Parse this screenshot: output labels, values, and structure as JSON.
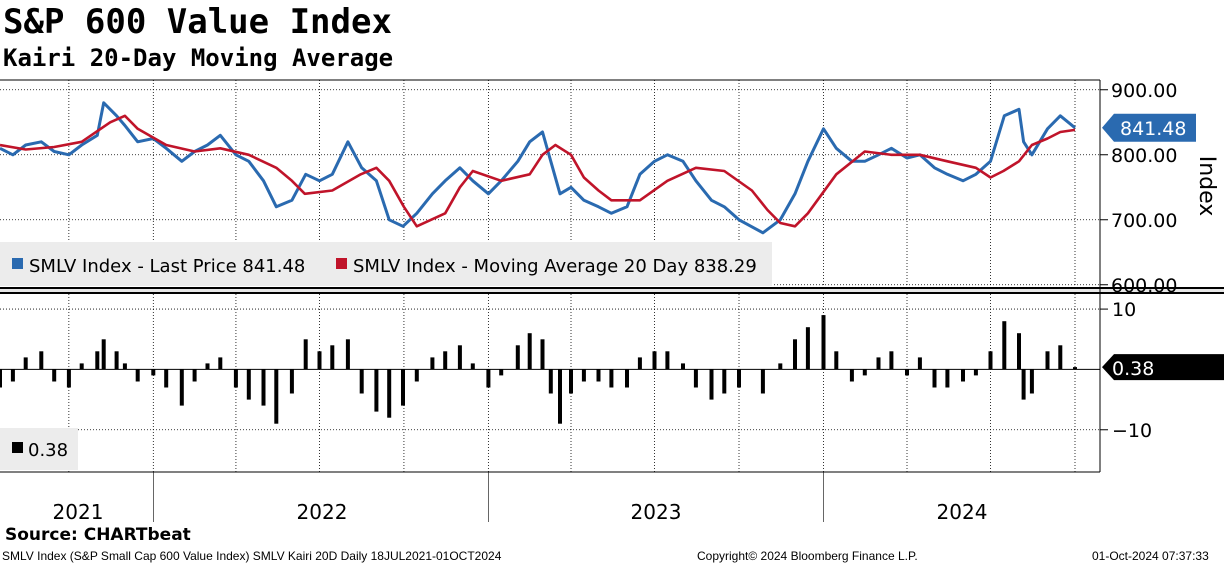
{
  "header": {
    "title": "S&P 600 Value Index",
    "subtitle": "Kairi 20-Day Moving Average"
  },
  "source": "Source: CHARTbeat",
  "footer": {
    "left": "SMLV Index (S&P Small Cap 600 Value Index) SMLV Kairi 20D  Daily 18JUL2021-01OCT2024",
    "center": "Copyright© 2024 Bloomberg Finance L.P.",
    "right": "01-Oct-2024 07:37:33"
  },
  "colors": {
    "price": "#2a6ab0",
    "ma": "#c0142a",
    "kairi": "#000000",
    "grid": "#000000"
  },
  "chart_data": [
    {
      "type": "line",
      "ylabel": "Index",
      "ylim": [
        595,
        915
      ],
      "yticks": [
        600,
        700,
        800,
        900
      ],
      "ytick_labels": [
        "600.00",
        "700.00",
        "800.00",
        "900.00"
      ],
      "x_years": [
        "2021",
        "2022",
        "2023",
        "2024"
      ],
      "last_price_label": "841.48",
      "legend": [
        {
          "name": "SMLV Index - Last Price 841.48",
          "color": "#2a6ab0"
        },
        {
          "name": "SMLV Index - Moving Average 20 Day 838.29",
          "color": "#c0142a"
        }
      ],
      "series": [
        {
          "name": "SMLV Index - Last Price",
          "dates": [
            "2021-07-18",
            "2021-08-01",
            "2021-08-15",
            "2021-09-01",
            "2021-09-15",
            "2021-10-01",
            "2021-10-15",
            "2021-11-01",
            "2021-11-08",
            "2021-11-22",
            "2021-12-01",
            "2021-12-15",
            "2022-01-01",
            "2022-01-15",
            "2022-02-01",
            "2022-02-15",
            "2022-03-01",
            "2022-03-15",
            "2022-04-01",
            "2022-04-15",
            "2022-05-01",
            "2022-05-15",
            "2022-06-01",
            "2022-06-16",
            "2022-07-01",
            "2022-07-15",
            "2022-08-01",
            "2022-08-16",
            "2022-09-01",
            "2022-09-15",
            "2022-09-30",
            "2022-10-15",
            "2022-11-01",
            "2022-11-15",
            "2022-12-01",
            "2022-12-15",
            "2023-01-01",
            "2023-01-15",
            "2023-02-02",
            "2023-02-15",
            "2023-03-01",
            "2023-03-10",
            "2023-03-20",
            "2023-04-01",
            "2023-04-15",
            "2023-05-01",
            "2023-05-15",
            "2023-06-01",
            "2023-06-15",
            "2023-07-01",
            "2023-07-15",
            "2023-08-01",
            "2023-08-15",
            "2023-09-01",
            "2023-09-15",
            "2023-10-01",
            "2023-10-27",
            "2023-11-15",
            "2023-12-01",
            "2023-12-15",
            "2024-01-01",
            "2024-01-15",
            "2024-02-01",
            "2024-02-15",
            "2024-03-01",
            "2024-03-15",
            "2024-04-01",
            "2024-04-15",
            "2024-05-01",
            "2024-05-15",
            "2024-06-01",
            "2024-06-15",
            "2024-07-01",
            "2024-07-16",
            "2024-08-01",
            "2024-08-06",
            "2024-08-15",
            "2024-09-01",
            "2024-09-15",
            "2024-10-01"
          ],
          "values": [
            810,
            800,
            815,
            820,
            805,
            800,
            815,
            830,
            880,
            860,
            845,
            820,
            825,
            810,
            790,
            805,
            815,
            830,
            800,
            790,
            760,
            720,
            730,
            770,
            760,
            770,
            820,
            780,
            760,
            700,
            690,
            710,
            740,
            760,
            780,
            760,
            740,
            760,
            790,
            820,
            835,
            790,
            740,
            750,
            730,
            720,
            710,
            720,
            770,
            790,
            800,
            790,
            760,
            730,
            720,
            700,
            680,
            700,
            740,
            790,
            840,
            810,
            790,
            790,
            800,
            810,
            795,
            800,
            780,
            770,
            760,
            770,
            790,
            860,
            870,
            820,
            800,
            840,
            860,
            841.48
          ]
        },
        {
          "name": "SMLV Index - Moving Average 20 Day",
          "dates": [
            "2021-07-18",
            "2021-08-15",
            "2021-09-15",
            "2021-10-15",
            "2021-11-15",
            "2021-12-01",
            "2021-12-15",
            "2022-01-15",
            "2022-02-15",
            "2022-03-15",
            "2022-04-15",
            "2022-05-15",
            "2022-06-01",
            "2022-06-15",
            "2022-07-15",
            "2022-08-15",
            "2022-09-01",
            "2022-09-15",
            "2022-10-01",
            "2022-10-15",
            "2022-11-15",
            "2022-12-01",
            "2022-12-15",
            "2023-01-15",
            "2023-02-15",
            "2023-03-01",
            "2023-03-15",
            "2023-04-01",
            "2023-04-15",
            "2023-05-01",
            "2023-05-15",
            "2023-06-15",
            "2023-07-15",
            "2023-08-15",
            "2023-09-15",
            "2023-10-15",
            "2023-11-01",
            "2023-11-15",
            "2023-12-01",
            "2023-12-15",
            "2024-01-15",
            "2024-02-15",
            "2024-03-15",
            "2024-04-15",
            "2024-05-15",
            "2024-06-15",
            "2024-07-01",
            "2024-07-15",
            "2024-08-01",
            "2024-08-15",
            "2024-09-01",
            "2024-09-15",
            "2024-10-01"
          ],
          "values": [
            815,
            808,
            812,
            820,
            850,
            860,
            840,
            815,
            805,
            810,
            800,
            780,
            760,
            740,
            745,
            770,
            780,
            760,
            720,
            690,
            710,
            750,
            775,
            760,
            770,
            800,
            815,
            800,
            765,
            745,
            730,
            730,
            760,
            780,
            775,
            745,
            715,
            695,
            690,
            710,
            770,
            805,
            800,
            800,
            790,
            780,
            765,
            775,
            790,
            815,
            825,
            835,
            838.29
          ]
        }
      ]
    },
    {
      "type": "bar",
      "ylim": [
        -17,
        12.5
      ],
      "yticks": [
        10,
        -10
      ],
      "ytick_labels": [
        "10",
        "−10"
      ],
      "last_value_label": "0.38",
      "legend": [
        {
          "name": "0.38",
          "color": "#000000"
        }
      ],
      "series": [
        {
          "name": "SMLV Kairi 20D",
          "dates": [
            "2021-07-18",
            "2021-08-01",
            "2021-08-15",
            "2021-09-01",
            "2021-09-15",
            "2021-10-01",
            "2021-10-15",
            "2021-11-01",
            "2021-11-08",
            "2021-11-22",
            "2021-12-01",
            "2021-12-15",
            "2022-01-01",
            "2022-01-15",
            "2022-02-01",
            "2022-02-15",
            "2022-03-01",
            "2022-03-15",
            "2022-04-01",
            "2022-04-15",
            "2022-05-01",
            "2022-05-15",
            "2022-06-01",
            "2022-06-16",
            "2022-07-01",
            "2022-07-15",
            "2022-08-01",
            "2022-08-16",
            "2022-09-01",
            "2022-09-15",
            "2022-09-30",
            "2022-10-15",
            "2022-11-01",
            "2022-11-15",
            "2022-12-01",
            "2022-12-15",
            "2023-01-01",
            "2023-01-15",
            "2023-02-02",
            "2023-02-15",
            "2023-03-01",
            "2023-03-10",
            "2023-03-20",
            "2023-04-01",
            "2023-04-15",
            "2023-05-01",
            "2023-05-15",
            "2023-06-01",
            "2023-06-15",
            "2023-07-01",
            "2023-07-15",
            "2023-08-01",
            "2023-08-15",
            "2023-09-01",
            "2023-09-15",
            "2023-10-01",
            "2023-10-27",
            "2023-11-15",
            "2023-12-01",
            "2023-12-15",
            "2024-01-01",
            "2024-01-15",
            "2024-02-01",
            "2024-02-15",
            "2024-03-01",
            "2024-03-15",
            "2024-04-01",
            "2024-04-15",
            "2024-05-01",
            "2024-05-15",
            "2024-06-01",
            "2024-06-15",
            "2024-07-01",
            "2024-07-16",
            "2024-08-01",
            "2024-08-06",
            "2024-08-15",
            "2024-09-01",
            "2024-09-15",
            "2024-10-01"
          ],
          "values": [
            -3,
            -2,
            2,
            3,
            -2,
            -3,
            1,
            3,
            5,
            3,
            1,
            -2,
            -1,
            -3,
            -6,
            -2,
            1,
            2,
            -3,
            -5,
            -6,
            -9,
            -4,
            5,
            3,
            4,
            5,
            -4,
            -7,
            -8,
            -6,
            -2,
            2,
            3,
            4,
            1,
            -3,
            -1,
            4,
            6,
            5,
            -4,
            -9,
            -4,
            -2,
            -2,
            -3,
            -3,
            2,
            3,
            3,
            1,
            -3,
            -5,
            -4,
            -3,
            -4,
            1,
            5,
            7,
            9,
            3,
            -2,
            -1,
            2,
            3,
            -1,
            2,
            -3,
            -3,
            -2,
            -1,
            3,
            8,
            6,
            -5,
            -4,
            3,
            4,
            0.38
          ]
        }
      ]
    }
  ]
}
